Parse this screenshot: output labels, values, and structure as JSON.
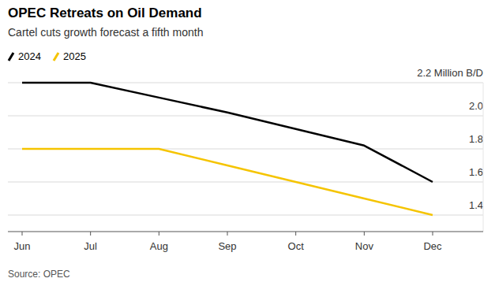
{
  "chart_data": {
    "type": "line",
    "title": "OPEC Retreats on Oil Demand",
    "subtitle": "Cartel cuts growth forecast a fifth month",
    "source": "Source: OPEC",
    "categories": [
      "Jun",
      "Jul",
      "Aug",
      "Sep",
      "Oct",
      "Nov",
      "Dec"
    ],
    "series": [
      {
        "name": "2024",
        "color": "#000000",
        "values": [
          2.2,
          2.2,
          2.11,
          2.02,
          1.92,
          1.82,
          1.6
        ]
      },
      {
        "name": "2025",
        "color": "#f5c400",
        "values": [
          1.8,
          1.8,
          1.8,
          1.7,
          1.6,
          1.5,
          1.4
        ]
      }
    ],
    "ylim": [
      1.3,
      2.2
    ],
    "yticks": [
      1.4,
      1.6,
      1.8,
      {
        "value": 2,
        "label": "2.0"
      },
      {
        "value": 2.2,
        "label": "2.2 Million B/D"
      }
    ],
    "grid": true,
    "legend": "top-left"
  }
}
